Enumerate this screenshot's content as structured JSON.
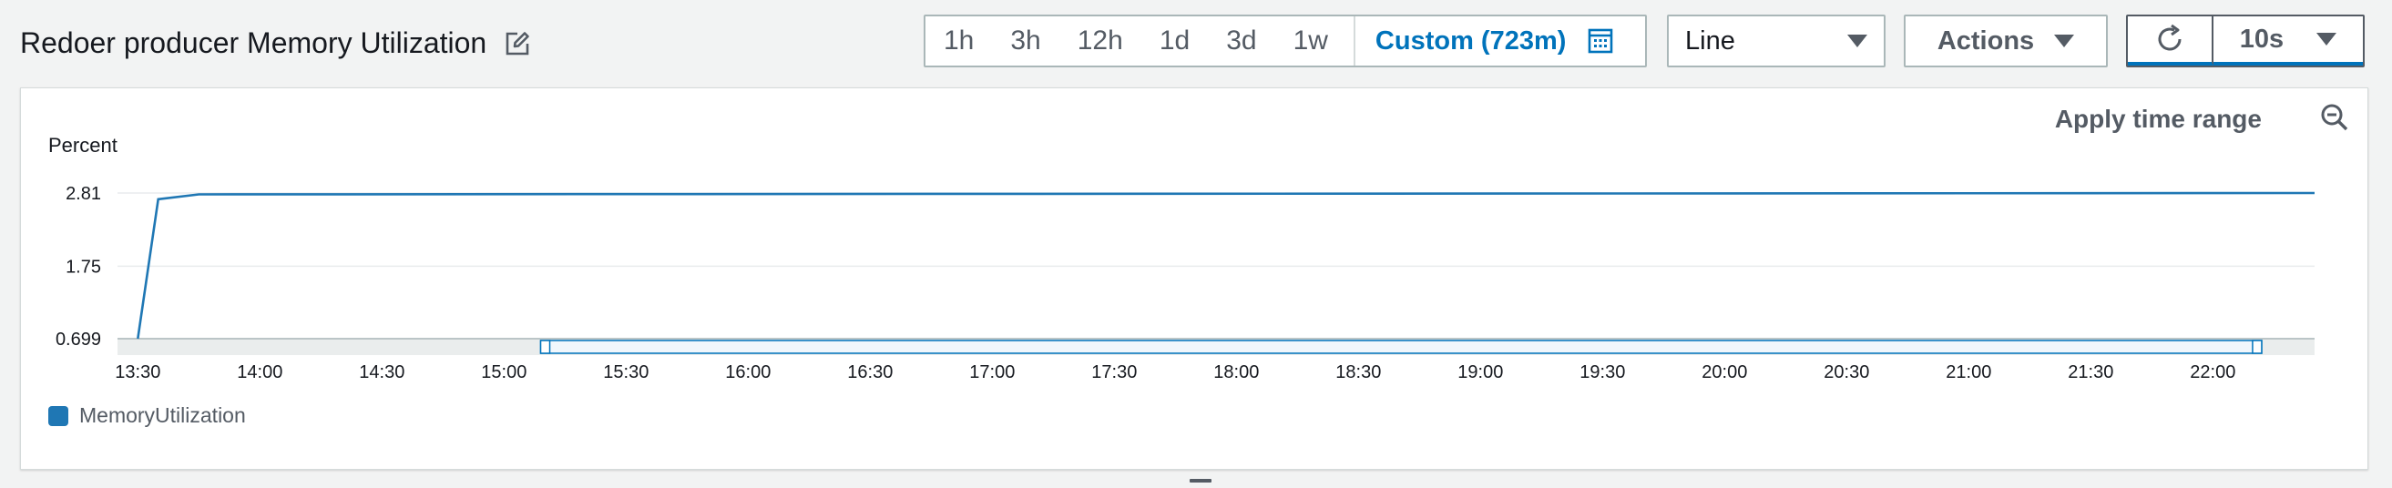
{
  "header": {
    "title": "Redoer producer Memory Utilization",
    "edit_icon": "edit-icon"
  },
  "time_range": {
    "options": [
      "1h",
      "3h",
      "12h",
      "1d",
      "3d",
      "1w"
    ],
    "custom_label": "Custom (723m)",
    "calendar_icon": "calendar-icon"
  },
  "chart_type_select": {
    "value": "Line"
  },
  "actions": {
    "label": "Actions"
  },
  "refresh": {
    "icon": "refresh-icon",
    "interval": "10s"
  },
  "panel": {
    "apply_time_range": "Apply time range",
    "zoom_out_icon": "zoom-out-icon"
  },
  "colors": {
    "series": "#1f77b4",
    "accent": "#0073bb"
  },
  "chart_data": {
    "type": "line",
    "ylabel": "Percent",
    "yticks": [
      "2.81",
      "1.75",
      "0.699"
    ],
    "ylim": [
      0.699,
      2.81
    ],
    "xticks": [
      "13:30",
      "14:00",
      "14:30",
      "15:00",
      "15:30",
      "16:00",
      "16:30",
      "17:00",
      "17:30",
      "18:00",
      "18:30",
      "19:00",
      "19:30",
      "20:00",
      "20:30",
      "21:00",
      "21:30",
      "22:00"
    ],
    "x_range": [
      "13:25",
      "22:25"
    ],
    "series": [
      {
        "name": "MemoryUtilization",
        "points": [
          [
            "13:30",
            0.699
          ],
          [
            "13:35",
            2.72
          ],
          [
            "13:45",
            2.79
          ],
          [
            "22:25",
            2.81
          ]
        ]
      }
    ],
    "brush_range": [
      "15:09",
      "22:12"
    ],
    "legend_position": "bottom-left",
    "grid": true
  }
}
